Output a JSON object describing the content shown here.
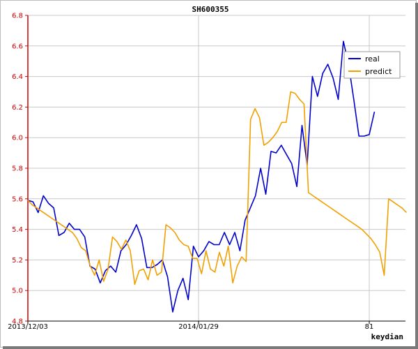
{
  "chart_data": {
    "type": "line",
    "title": "SH600355",
    "xlabel": "keydian",
    "ylabel": "",
    "ylim": [
      4.8,
      6.8
    ],
    "yticks": [
      4.8,
      5.0,
      5.2,
      5.4,
      5.6,
      5.8,
      6.0,
      6.2,
      6.4,
      6.6,
      6.8
    ],
    "xlim": [
      0,
      73
    ],
    "xticks": [
      {
        "x": 0,
        "label": "2013/12/03"
      },
      {
        "x": 33,
        "label": "2014/01/29"
      },
      {
        "x": 66,
        "label": "81"
      }
    ],
    "grid": true,
    "legend_position": "top-right",
    "series": [
      {
        "name": "real",
        "color": "#0000cc",
        "values": [
          5.59,
          5.58,
          5.51,
          5.62,
          5.57,
          5.54,
          5.36,
          5.38,
          5.44,
          5.4,
          5.4,
          5.35,
          5.16,
          5.14,
          5.05,
          5.13,
          5.16,
          5.12,
          5.26,
          5.3,
          5.36,
          5.43,
          5.34,
          5.15,
          5.15,
          5.17,
          5.2,
          5.09,
          4.86,
          5.0,
          5.08,
          4.94,
          5.29,
          5.22,
          5.26,
          5.32,
          5.3,
          5.3,
          5.38,
          5.3,
          5.38,
          5.26,
          5.46,
          5.54,
          5.62,
          5.8,
          5.63,
          5.91,
          5.9,
          5.95,
          5.89,
          5.83,
          5.68,
          6.08,
          5.82,
          6.4,
          6.27,
          6.42,
          6.48,
          6.39,
          6.25,
          6.63,
          6.48,
          6.25,
          6.01,
          6.01,
          6.02,
          6.17
        ]
      },
      {
        "name": "predict",
        "color": "#f0a000",
        "values": [
          5.59,
          5.56,
          5.54,
          5.52,
          5.5,
          5.48,
          5.46,
          5.44,
          5.42,
          5.4,
          5.38,
          5.34,
          5.28,
          5.26,
          5.16,
          5.1,
          5.2,
          5.06,
          5.14,
          5.35,
          5.32,
          5.27,
          5.33,
          5.26,
          5.04,
          5.13,
          5.14,
          5.07,
          5.2,
          5.1,
          5.12,
          5.43,
          5.41,
          5.38,
          5.33,
          5.3,
          5.29,
          5.21,
          5.21,
          5.11,
          5.26,
          5.14,
          5.12,
          5.25,
          5.16,
          5.29,
          5.05,
          5.16,
          5.22,
          5.19,
          6.12,
          6.19,
          6.13,
          5.95,
          5.97,
          6.0,
          6.04,
          6.1,
          6.1,
          6.3,
          6.29,
          6.25,
          6.22,
          5.64,
          5.62,
          5.6,
          5.58,
          5.56,
          5.54,
          5.52,
          5.5,
          5.48,
          5.46,
          5.44,
          5.42,
          5.4,
          5.37,
          5.34,
          5.3,
          5.25,
          5.1,
          5.6,
          5.58,
          5.56,
          5.54,
          5.51
        ],
        "x_step": 0.8611
      }
    ]
  }
}
